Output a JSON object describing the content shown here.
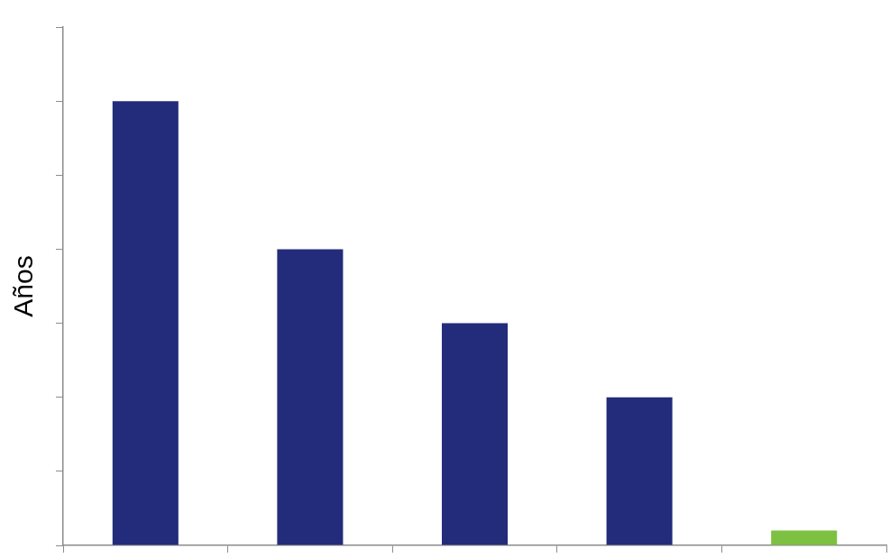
{
  "chart_data": {
    "type": "bar",
    "y_label": "Años",
    "categories": [
      null,
      null,
      null,
      null,
      null
    ],
    "values": [
      6,
      4,
      3,
      2,
      0.2
    ],
    "colors": [
      "#232c7a",
      "#232c7a",
      "#232c7a",
      "#232c7a",
      "#7dc142"
    ],
    "ylim": [
      0,
      7
    ],
    "yticks": [
      0,
      1,
      2,
      3,
      4,
      5,
      6,
      7
    ],
    "grid": false,
    "tick_labels": false
  }
}
